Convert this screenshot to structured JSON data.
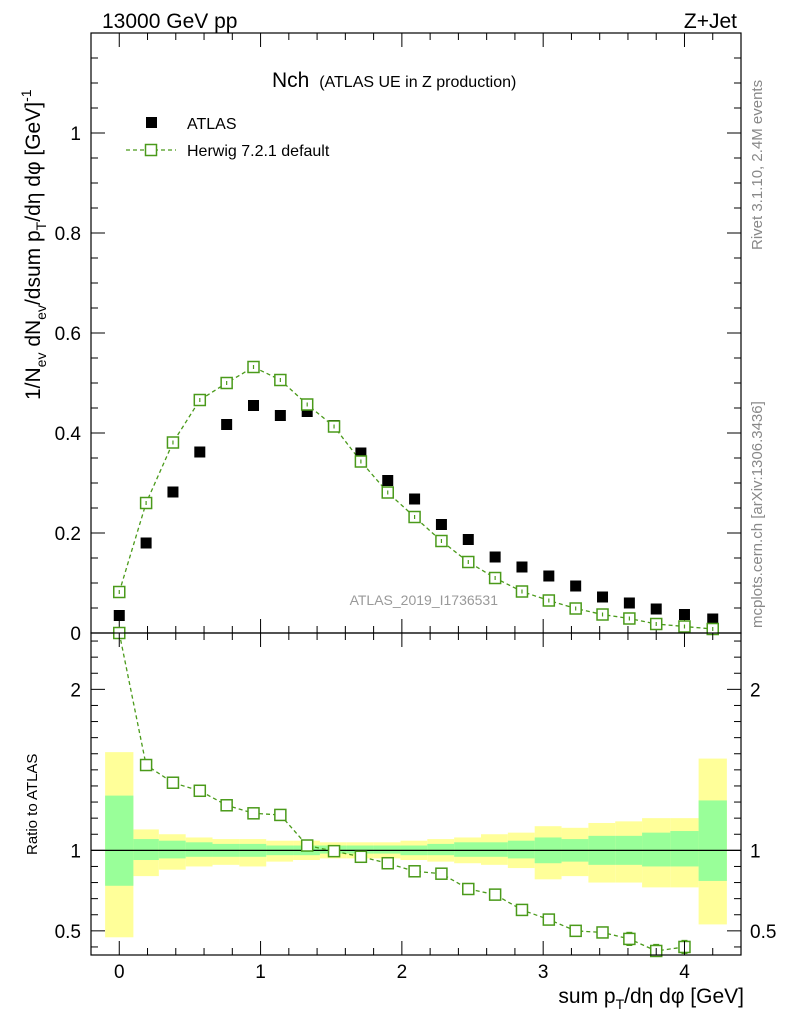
{
  "header": {
    "left": "13000 GeV pp",
    "right": "Z+Jet"
  },
  "side_labels": {
    "rivet": "Rivet 3.1.10,  2.4M events",
    "source": "mcplots.cern.ch [arXiv:1306.3436]"
  },
  "chart_data": [
    {
      "type": "scatter",
      "title_main": "Nch",
      "title_sub": "(ATLAS UE in Z production)",
      "watermark": "ATLAS_2019_I1736531",
      "ylabel": "1/N_ev dN_ev/dsum p_T/dη dφ [GeV]^-1",
      "ylabel_parts": {
        "a": "1/N",
        "a_sub": "ev",
        "b": " dN",
        "b_sub": "ev",
        "c": "/dsum p",
        "c_sub": "T",
        "d": "/dη dφ  [GeV]",
        "d_sup": "-1"
      },
      "xlim": [
        -0.2,
        4.4
      ],
      "ylim": [
        0,
        1.2
      ],
      "yticks": [
        0,
        0.2,
        0.4,
        0.6,
        0.8,
        1
      ],
      "ytick_labels": [
        "0",
        "0.2",
        "0.4",
        "0.6",
        "0.8",
        "1"
      ],
      "legend": {
        "position": "top-left",
        "atlas": "ATLAS",
        "herwig": "Herwig 7.2.1 default"
      },
      "series": [
        {
          "name": "ATLAS",
          "color": "#000000",
          "marker": "filled-square",
          "x": [
            0,
            0.19,
            0.38,
            0.57,
            0.76,
            0.95,
            1.14,
            1.33,
            1.52,
            1.71,
            1.9,
            2.09,
            2.28,
            2.47,
            2.66,
            2.85,
            3.04,
            3.23,
            3.42,
            3.61,
            3.8,
            4.0,
            4.2
          ],
          "values": [
            0.035,
            0.18,
            0.282,
            0.362,
            0.417,
            0.455,
            0.435,
            0.443,
            0.415,
            0.36,
            0.305,
            0.268,
            0.217,
            0.187,
            0.152,
            0.132,
            0.114,
            0.094,
            0.072,
            0.06,
            0.048,
            0.037,
            0.028
          ]
        },
        {
          "name": "Herwig 7.2.1 default",
          "color": "#4a9a1a",
          "marker": "open-square",
          "x": [
            0,
            0.19,
            0.38,
            0.57,
            0.76,
            0.95,
            1.14,
            1.33,
            1.52,
            1.71,
            1.9,
            2.09,
            2.28,
            2.47,
            2.66,
            2.85,
            3.04,
            3.23,
            3.42,
            3.61,
            3.8,
            4.0,
            4.2
          ],
          "values": [
            0.082,
            0.26,
            0.381,
            0.466,
            0.5,
            0.532,
            0.506,
            0.457,
            0.413,
            0.343,
            0.281,
            0.232,
            0.184,
            0.142,
            0.11,
            0.083,
            0.065,
            0.049,
            0.037,
            0.029,
            0.018,
            0.013,
            0.008
          ]
        }
      ]
    },
    {
      "type": "line",
      "ylabel": "Ratio to ATLAS",
      "xlabel": "sum p_T/dη dφ [GeV]",
      "xlabel_parts": {
        "a": "sum p",
        "a_sub": "T",
        "b": "/dη dφ [GeV]"
      },
      "xlim": [
        -0.2,
        4.4
      ],
      "ylim": [
        0.35,
        2.35
      ],
      "xticks": [
        0,
        1,
        2,
        3,
        4
      ],
      "xtick_labels": [
        "0",
        "1",
        "2",
        "3",
        "4"
      ],
      "yticks": [
        0.5,
        1,
        2
      ],
      "ytick_labels": [
        "0.5",
        "1",
        "2"
      ],
      "reference_line": 1,
      "bins": [
        -0.1,
        0.1,
        0.28,
        0.47,
        0.66,
        0.85,
        1.04,
        1.23,
        1.42,
        1.61,
        1.8,
        1.99,
        2.18,
        2.37,
        2.56,
        2.75,
        2.94,
        3.13,
        3.32,
        3.51,
        3.7,
        3.9,
        4.1,
        4.3
      ],
      "band_outer": {
        "color": "#ffff99",
        "low": [
          0.46,
          0.84,
          0.88,
          0.9,
          0.91,
          0.9,
          0.93,
          0.94,
          0.95,
          0.95,
          0.95,
          0.94,
          0.93,
          0.92,
          0.91,
          0.89,
          0.82,
          0.84,
          0.8,
          0.8,
          0.77,
          0.77,
          0.54
        ],
        "high": [
          1.61,
          1.13,
          1.1,
          1.08,
          1.07,
          1.07,
          1.06,
          1.06,
          1.05,
          1.05,
          1.05,
          1.06,
          1.07,
          1.08,
          1.1,
          1.11,
          1.15,
          1.14,
          1.17,
          1.18,
          1.2,
          1.2,
          1.57
        ]
      },
      "band_inner": {
        "color": "#99ff99",
        "low": [
          0.78,
          0.94,
          0.95,
          0.96,
          0.96,
          0.96,
          0.97,
          0.97,
          0.98,
          0.98,
          0.98,
          0.97,
          0.97,
          0.96,
          0.96,
          0.95,
          0.92,
          0.93,
          0.91,
          0.91,
          0.9,
          0.9,
          0.81
        ],
        "high": [
          1.34,
          1.07,
          1.06,
          1.05,
          1.04,
          1.04,
          1.03,
          1.03,
          1.03,
          1.03,
          1.03,
          1.03,
          1.04,
          1.05,
          1.05,
          1.06,
          1.08,
          1.07,
          1.09,
          1.09,
          1.11,
          1.12,
          1.31
        ]
      },
      "series": [
        {
          "name": "Herwig 7.2.1 default",
          "color": "#4a9a1a",
          "x": [
            0,
            0.19,
            0.38,
            0.57,
            0.76,
            0.95,
            1.14,
            1.33,
            1.52,
            1.71,
            1.9,
            2.09,
            2.28,
            2.47,
            2.66,
            2.85,
            3.04,
            3.23,
            3.42,
            3.61,
            3.8,
            4.0
          ],
          "values": [
            2.35,
            1.53,
            1.42,
            1.37,
            1.28,
            1.23,
            1.22,
            1.03,
            0.995,
            0.96,
            0.92,
            0.87,
            0.855,
            0.76,
            0.725,
            0.63,
            0.57,
            0.5,
            0.49,
            0.45,
            0.375,
            0.4
          ],
          "errors": [
            0.0,
            0.02,
            0.02,
            0.02,
            0.02,
            0.02,
            0.02,
            0.02,
            0.02,
            0.02,
            0.02,
            0.02,
            0.02,
            0.02,
            0.02,
            0.03,
            0.03,
            0.03,
            0.03,
            0.04,
            0.04,
            0.04
          ]
        }
      ]
    }
  ]
}
